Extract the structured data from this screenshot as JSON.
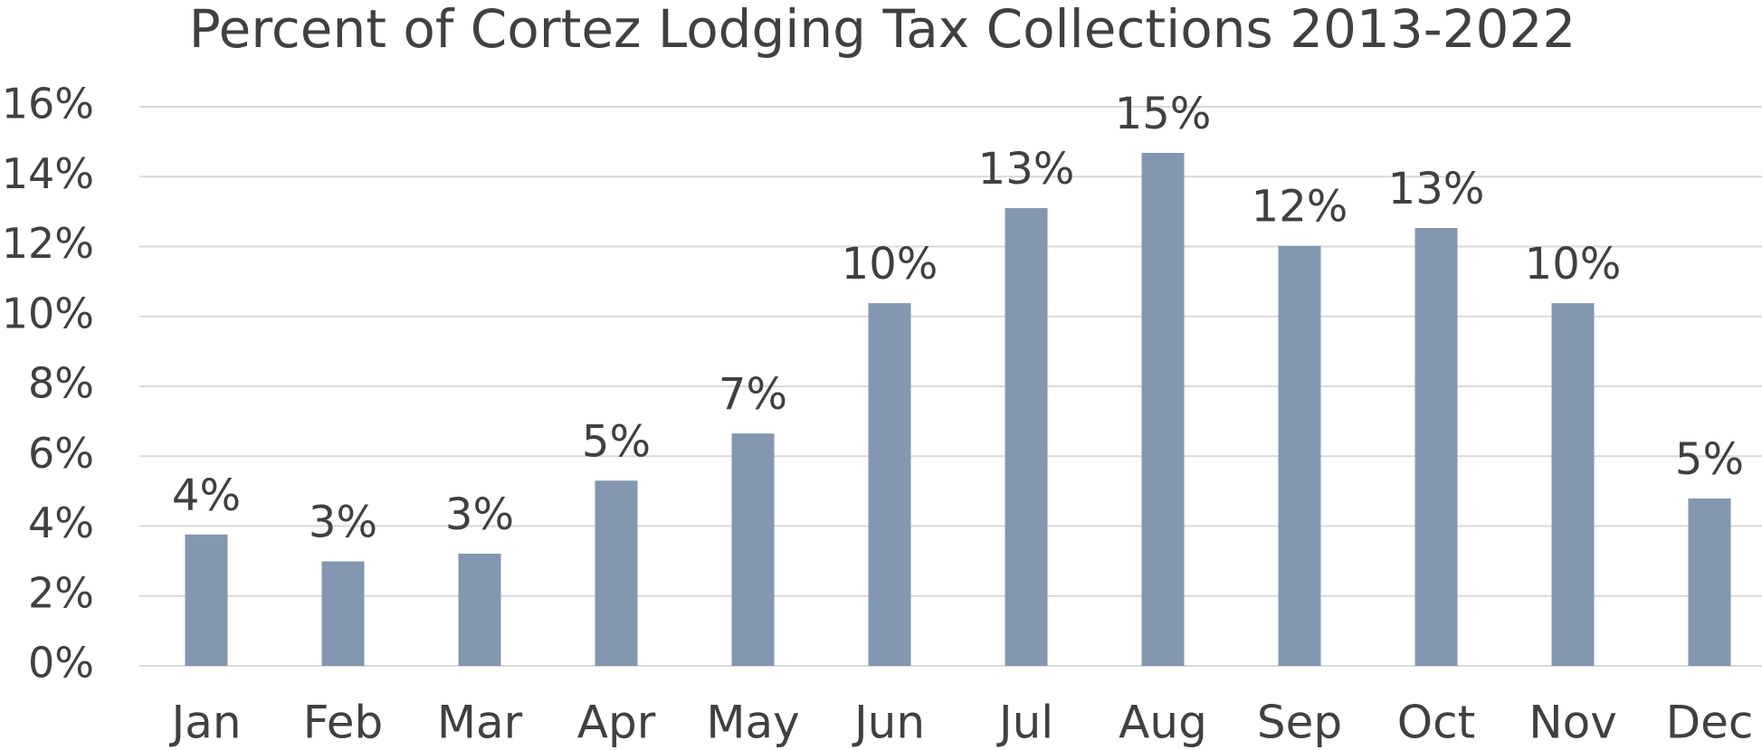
{
  "chart_data": {
    "type": "bar",
    "title": "Percent of Cortez Lodging Tax Collections 2013-2022",
    "categories": [
      "Jan",
      "Feb",
      "Mar",
      "Apr",
      "May",
      "Jun",
      "Jul",
      "Aug",
      "Sep",
      "Oct",
      "Nov",
      "Dec"
    ],
    "values": [
      3.76,
      2.99,
      3.21,
      5.3,
      6.65,
      10.38,
      13.1,
      14.68,
      12.02,
      12.53,
      10.38,
      4.79
    ],
    "value_labels": [
      "4%",
      "3%",
      "3%",
      "5%",
      "7%",
      "10%",
      "13%",
      "15%",
      "12%",
      "13%",
      "10%",
      "5%"
    ],
    "color": "#8497b0",
    "ylim": [
      0,
      16
    ],
    "yticks": [
      {
        "value": 0,
        "label": "0%"
      },
      {
        "value": 2,
        "label": "2%"
      },
      {
        "value": 4,
        "label": "4%"
      },
      {
        "value": 6,
        "label": "6%"
      },
      {
        "value": 8,
        "label": "8%"
      },
      {
        "value": 10,
        "label": "10%"
      },
      {
        "value": 12,
        "label": "12%"
      },
      {
        "value": 14,
        "label": "14%"
      },
      {
        "value": 16,
        "label": "16%"
      }
    ],
    "grid": true
  }
}
